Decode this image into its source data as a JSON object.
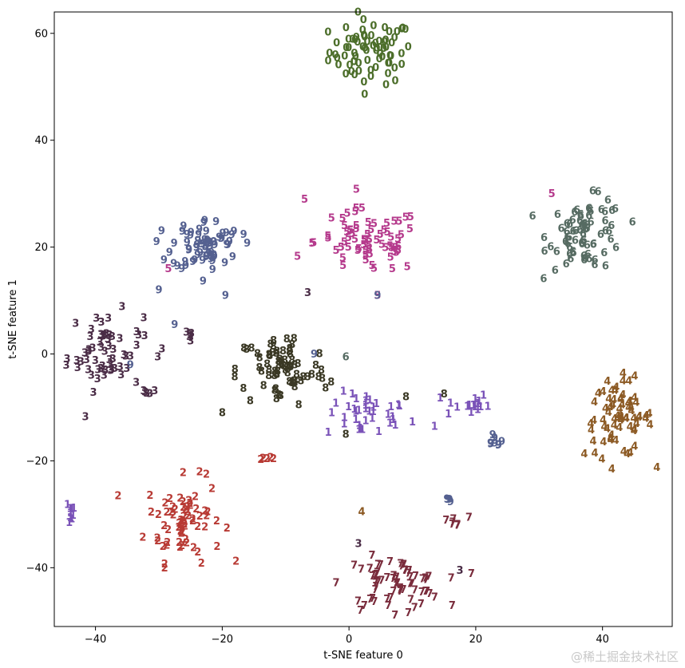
{
  "watermark": "@稀土掘金技术社区",
  "chart_data": {
    "type": "scatter",
    "marker": "digit-text",
    "xlabel": "t-SNE feature 0",
    "ylabel": "t-SNE feature 1",
    "xlim": [
      -46.5,
      51
    ],
    "ylim": [
      -51,
      64
    ],
    "xticks": [
      -40,
      -20,
      0,
      20,
      40
    ],
    "yticks": [
      -40,
      -20,
      0,
      20,
      40,
      60
    ],
    "clusters": [
      {
        "label": "0",
        "color": "#4c6e2a",
        "center": [
          3.5,
          56.5
        ],
        "spread": [
          5.5,
          5.0
        ],
        "count": 75
      },
      {
        "label": "1",
        "color": "#7a52b8",
        "center": [
          3.0,
          -11.5
        ],
        "spread": [
          5.5,
          3.5
        ],
        "count": 38
      },
      {
        "label": "1",
        "color": "#7a52b8",
        "center": [
          18.5,
          -9.5
        ],
        "spread": [
          3.0,
          2.0
        ],
        "count": 16
      },
      {
        "label": "1",
        "color": "#7a52b8",
        "center": [
          -44.2,
          -29.5
        ],
        "spread": [
          1.0,
          2.0
        ],
        "count": 10
      },
      {
        "label": "2",
        "color": "#b83a34",
        "center": [
          -26.0,
          -31.0
        ],
        "spread": [
          5.0,
          6.5
        ],
        "count": 68
      },
      {
        "label": "2",
        "color": "#b83a34",
        "center": [
          -13.0,
          -19.5
        ],
        "spread": [
          1.0,
          0.4
        ],
        "count": 5
      },
      {
        "label": "3",
        "color": "#4a2c46",
        "center": [
          -38.5,
          0.5
        ],
        "spread": [
          5.0,
          6.0
        ],
        "count": 62
      },
      {
        "label": "3",
        "color": "#4a2c46",
        "center": [
          -31.5,
          -7.0
        ],
        "spread": [
          1.5,
          0.5
        ],
        "count": 5
      },
      {
        "label": "3",
        "color": "#4a2c46",
        "center": [
          -25.0,
          3.5
        ],
        "spread": [
          0.6,
          0.8
        ],
        "count": 5
      },
      {
        "label": "4",
        "color": "#8c5a24",
        "center": [
          42.5,
          -12.0
        ],
        "spread": [
          4.5,
          6.0
        ],
        "count": 72
      },
      {
        "label": "5",
        "color": "#b53a8c",
        "center": [
          3.0,
          21.0
        ],
        "spread": [
          7.0,
          5.0
        ],
        "count": 70
      },
      {
        "label": "6",
        "color": "#566b62",
        "center": [
          37.5,
          22.5
        ],
        "spread": [
          5.0,
          5.5
        ],
        "count": 75
      },
      {
        "label": "7",
        "color": "#7a2c3c",
        "center": [
          7.0,
          -43.0
        ],
        "spread": [
          6.5,
          4.0
        ],
        "count": 70
      },
      {
        "label": "7",
        "color": "#7a2c3c",
        "center": [
          16.5,
          -31.5
        ],
        "spread": [
          2.0,
          0.8
        ],
        "count": 7
      },
      {
        "label": "8",
        "color": "#3a3824",
        "center": [
          -10.5,
          -3.0
        ],
        "spread": [
          6.0,
          6.0
        ],
        "count": 75
      },
      {
        "label": "9",
        "color": "#546090",
        "center": [
          -22.5,
          20.5
        ],
        "spread": [
          4.5,
          4.0
        ],
        "count": 70
      },
      {
        "label": "9",
        "color": "#546090",
        "center": [
          23.0,
          -16.0
        ],
        "spread": [
          1.0,
          1.2
        ],
        "count": 8
      },
      {
        "label": "9",
        "color": "#546090",
        "center": [
          15.5,
          -27.5
        ],
        "spread": [
          0.6,
          0.6
        ],
        "count": 4
      }
    ],
    "outliers": [
      {
        "label": "5",
        "color": "#b53a8c",
        "x": -7.0,
        "y": 29.0
      },
      {
        "label": "9",
        "color": "#546090",
        "x": -30.0,
        "y": 12.0
      },
      {
        "label": "9",
        "color": "#546090",
        "x": -19.5,
        "y": 11.0
      },
      {
        "label": "3",
        "color": "#4a2c46",
        "x": -29.5,
        "y": 1.0
      },
      {
        "label": "3",
        "color": "#4a2c46",
        "x": -6.5,
        "y": 11.5
      },
      {
        "label": "5",
        "color": "#b53a8c",
        "x": 4.5,
        "y": 11.0
      },
      {
        "label": "9",
        "color": "#546090",
        "x": 4.5,
        "y": 11.0
      },
      {
        "label": "6",
        "color": "#566b62",
        "x": -0.5,
        "y": -0.5
      },
      {
        "label": "9",
        "color": "#546090",
        "x": -5.5,
        "y": 0.0
      },
      {
        "label": "8",
        "color": "#3a3824",
        "x": -20.0,
        "y": -11.0
      },
      {
        "label": "8",
        "color": "#3a3824",
        "x": 9.0,
        "y": -8.0
      },
      {
        "label": "8",
        "color": "#3a3824",
        "x": 15.0,
        "y": -7.5
      },
      {
        "label": "8",
        "color": "#3a3824",
        "x": -0.5,
        "y": -15.0
      },
      {
        "label": "9",
        "color": "#546090",
        "x": -27.5,
        "y": 5.5
      },
      {
        "label": "9",
        "color": "#546090",
        "x": -34.5,
        "y": -2.0
      },
      {
        "label": "5",
        "color": "#b53a8c",
        "x": -28.5,
        "y": 16.0
      },
      {
        "label": "5",
        "color": "#b53a8c",
        "x": 32.0,
        "y": 30.0
      },
      {
        "label": "4",
        "color": "#8c5a24",
        "x": 2.0,
        "y": -29.5
      },
      {
        "label": "3",
        "color": "#4a2c46",
        "x": 1.5,
        "y": -35.5
      },
      {
        "label": "3",
        "color": "#4a2c46",
        "x": 17.5,
        "y": -40.5
      },
      {
        "label": "1",
        "color": "#7a52b8",
        "x": 13.5,
        "y": -13.5
      },
      {
        "label": "2",
        "color": "#b83a34",
        "x": -22.5,
        "y": -22.5
      }
    ]
  }
}
